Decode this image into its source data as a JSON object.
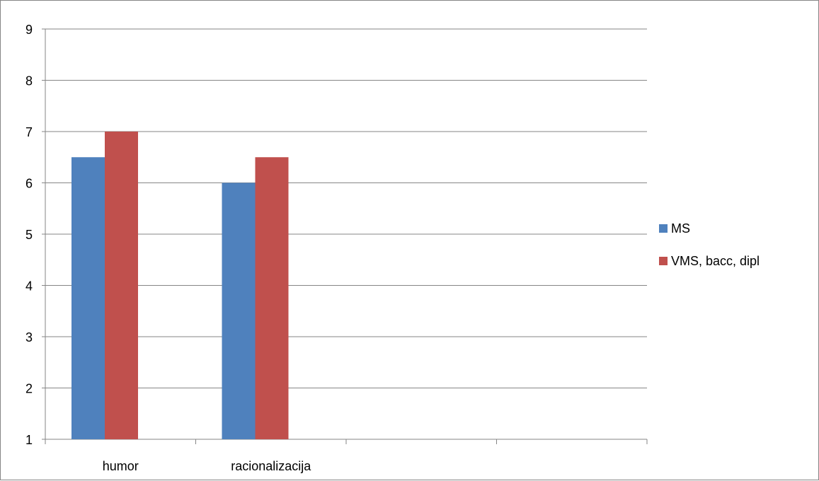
{
  "chart_data": {
    "type": "bar",
    "categories": [
      "humor",
      "racionalizacija",
      "",
      ""
    ],
    "series": [
      {
        "name": "MS",
        "color": "#4F81BD",
        "values": [
          6.5,
          6.0,
          null,
          null
        ]
      },
      {
        "name": "VMS, bacc, dipl",
        "color": "#C0504D",
        "values": [
          7.0,
          6.5,
          null,
          null
        ]
      }
    ],
    "ylim": [
      1,
      9
    ],
    "yticks": [
      "1",
      "2",
      "3",
      "4",
      "5",
      "6",
      "7",
      "8",
      "9"
    ],
    "grid": true,
    "legend": "right"
  }
}
